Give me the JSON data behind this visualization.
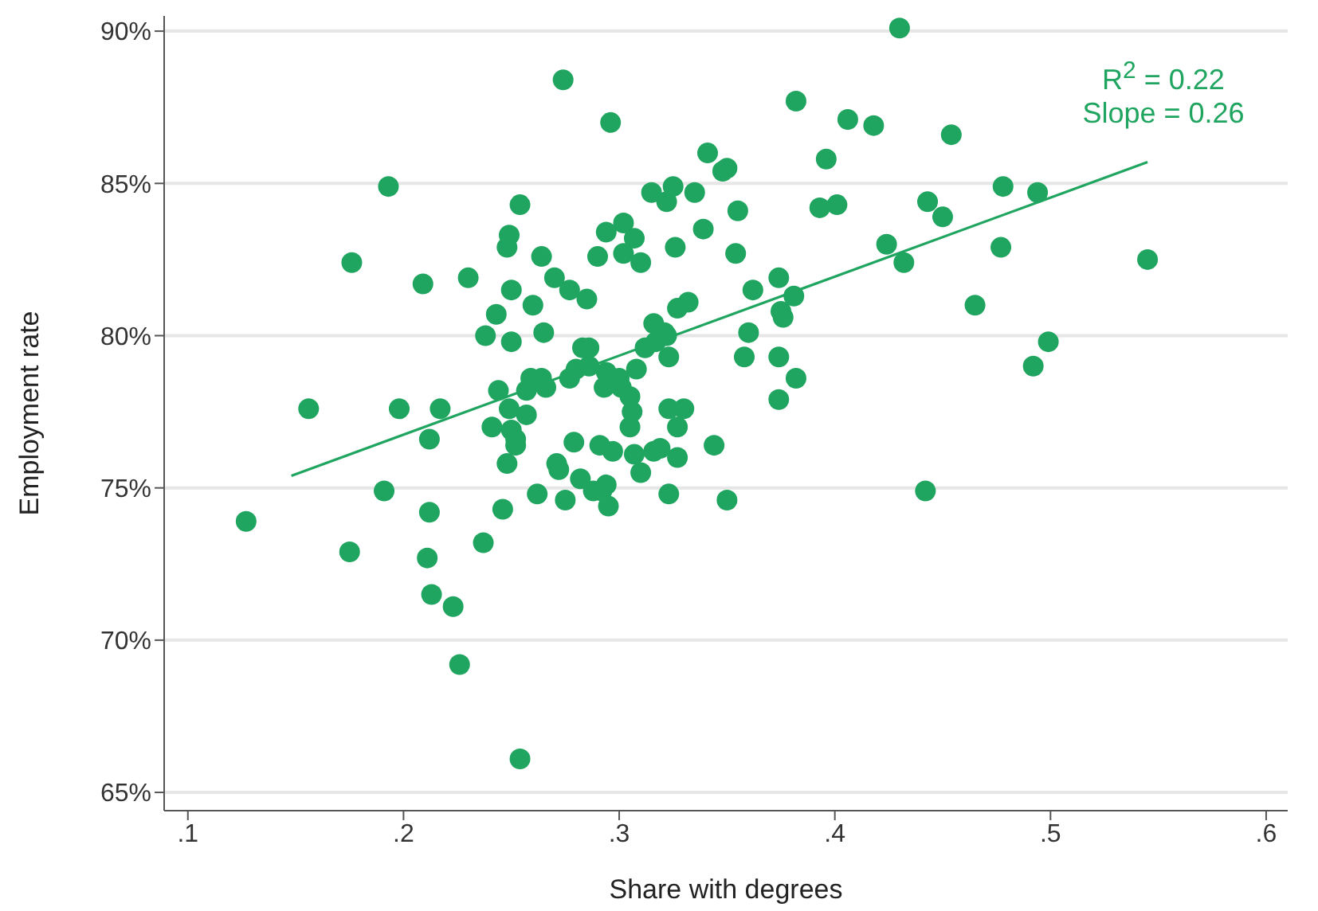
{
  "chart_data": {
    "type": "scatter",
    "xlabel": "Share with degrees",
    "ylabel": "Employment rate",
    "annotations": [
      "R$^{2}$ = 0.22",
      "Slope = 0.26"
    ],
    "xlim": [
      0.089,
      0.61
    ],
    "ylim": [
      64.4,
      90.5
    ],
    "xticks": [
      {
        "value": 0.1,
        "label": ".1"
      },
      {
        "value": 0.2,
        "label": ".2"
      },
      {
        "value": 0.3,
        "label": ".3"
      },
      {
        "value": 0.4,
        "label": ".4"
      },
      {
        "value": 0.5,
        "label": ".5"
      },
      {
        "value": 0.6,
        "label": ".6"
      }
    ],
    "yticks": [
      {
        "value": 65,
        "label": "65%"
      },
      {
        "value": 70,
        "label": "70%"
      },
      {
        "value": 75,
        "label": "75%"
      },
      {
        "value": 80,
        "label": "80%"
      },
      {
        "value": 85,
        "label": "85%"
      },
      {
        "value": 90,
        "label": "90%"
      }
    ],
    "grid": "y",
    "marker": "circle",
    "series": [
      {
        "color": "#1fa55f",
        "x": [
          0.127,
          0.156,
          0.175,
          0.176,
          0.191,
          0.193,
          0.198,
          0.209,
          0.212,
          0.212,
          0.211,
          0.213,
          0.217,
          0.223,
          0.226,
          0.23,
          0.237,
          0.238,
          0.241,
          0.243,
          0.244,
          0.246,
          0.248,
          0.249,
          0.249,
          0.25,
          0.25,
          0.25,
          0.248,
          0.252,
          0.254,
          0.254,
          0.252,
          0.257,
          0.257,
          0.259,
          0.26,
          0.262,
          0.264,
          0.264,
          0.265,
          0.266,
          0.27,
          0.271,
          0.272,
          0.274,
          0.275,
          0.277,
          0.277,
          0.279,
          0.28,
          0.282,
          0.283,
          0.285,
          0.286,
          0.286,
          0.288,
          0.29,
          0.291,
          0.292,
          0.293,
          0.294,
          0.294,
          0.294,
          0.295,
          0.296,
          0.297,
          0.3,
          0.301,
          0.302,
          0.302,
          0.305,
          0.305,
          0.306,
          0.307,
          0.307,
          0.308,
          0.31,
          0.31,
          0.312,
          0.315,
          0.316,
          0.316,
          0.317,
          0.319,
          0.321,
          0.322,
          0.322,
          0.323,
          0.323,
          0.323,
          0.325,
          0.326,
          0.327,
          0.327,
          0.327,
          0.33,
          0.332,
          0.335,
          0.339,
          0.341,
          0.344,
          0.348,
          0.35,
          0.35,
          0.354,
          0.355,
          0.358,
          0.36,
          0.362,
          0.374,
          0.374,
          0.374,
          0.375,
          0.376,
          0.382,
          0.381,
          0.382,
          0.393,
          0.396,
          0.401,
          0.406,
          0.418,
          0.424,
          0.43,
          0.432,
          0.442,
          0.443,
          0.45,
          0.454,
          0.465,
          0.477,
          0.478,
          0.492,
          0.494,
          0.499,
          0.545
        ],
        "values": [
          73.9,
          77.6,
          72.9,
          82.4,
          74.9,
          84.9,
          77.6,
          81.7,
          74.2,
          76.6,
          72.7,
          71.5,
          77.6,
          71.1,
          69.2,
          81.9,
          73.2,
          80.0,
          77.0,
          80.7,
          78.2,
          74.3,
          82.9,
          83.3,
          77.6,
          81.5,
          76.9,
          79.8,
          75.8,
          76.4,
          84.3,
          66.1,
          76.6,
          77.4,
          78.2,
          78.6,
          81.0,
          74.8,
          82.6,
          78.6,
          80.1,
          78.3,
          81.9,
          75.8,
          75.6,
          88.4,
          74.6,
          78.6,
          81.5,
          76.5,
          78.9,
          75.3,
          79.6,
          81.2,
          79.6,
          79.0,
          74.9,
          82.6,
          76.4,
          74.9,
          78.3,
          83.4,
          75.1,
          78.8,
          74.4,
          87.0,
          76.2,
          78.6,
          78.3,
          82.7,
          83.7,
          78.0,
          77.0,
          77.5,
          76.1,
          83.2,
          78.9,
          82.4,
          75.5,
          79.6,
          84.7,
          80.4,
          76.2,
          79.8,
          76.3,
          80.1,
          84.4,
          80.0,
          79.3,
          74.8,
          77.6,
          84.9,
          82.9,
          77.0,
          76.0,
          80.9,
          77.6,
          81.1,
          84.7,
          83.5,
          86.0,
          76.4,
          85.4,
          85.5,
          74.6,
          82.7,
          84.1,
          79.3,
          80.1,
          81.5,
          77.9,
          79.3,
          81.9,
          80.8,
          80.6,
          87.7,
          81.3,
          78.6,
          84.2,
          85.8,
          84.3,
          87.1,
          86.9,
          83.0,
          90.1,
          82.4,
          74.9,
          84.4,
          83.9,
          86.6,
          81.0,
          82.9,
          84.9,
          79.0,
          84.7,
          79.8,
          82.5
        ]
      },
      {
        "type": "line",
        "color": "#1fa55f",
        "marker": "none",
        "x": [
          0.148,
          0.545
        ],
        "values": [
          75.4,
          85.7
        ]
      }
    ]
  }
}
